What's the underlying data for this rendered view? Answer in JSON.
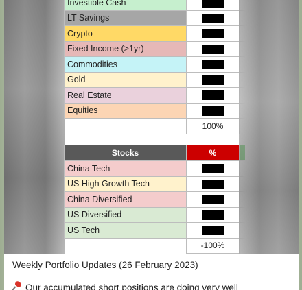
{
  "allocation_table": {
    "rows": [
      {
        "label": "Investible Cash",
        "color": "#c6efce"
      },
      {
        "label": "LT Savings",
        "color": "#a6a6a6"
      },
      {
        "label": "Crypto",
        "color": "#ffd966"
      },
      {
        "label": "Fixed Income (>1yr)",
        "color": "#e6b8b7"
      },
      {
        "label": "Commodities",
        "color": "#c5f3f7"
      },
      {
        "label": "Gold",
        "color": "#fff2cc"
      },
      {
        "label": "Real Estate",
        "color": "#ead1dc"
      },
      {
        "label": "Equities",
        "color": "#fcd5b4"
      }
    ],
    "total": "100%"
  },
  "stocks_table": {
    "header": {
      "name": "Stocks",
      "pct": "%"
    },
    "rows": [
      {
        "label": "China Tech",
        "color": "#f4cccc"
      },
      {
        "label": "US High Growth Tech",
        "color": "#fff2cc"
      },
      {
        "label": "China Diversified",
        "color": "#f4cccc"
      },
      {
        "label": "US Diversified",
        "color": "#d9ead3"
      },
      {
        "label": "US Tech",
        "color": "#d9ead3"
      }
    ],
    "total": "-100%"
  },
  "message": {
    "caption": "Weekly Portfolio Updates (26 February 2023)",
    "note": "Our accumulated short positions are doing very well"
  }
}
